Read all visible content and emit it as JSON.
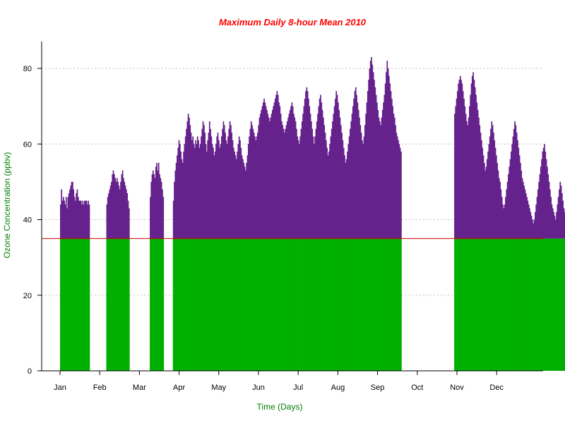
{
  "chart_data": {
    "type": "bar",
    "title": "Maximum Daily 8-hour Mean  2010",
    "xlabel": "Time (Days)",
    "ylabel": "Ozone Concentration (ppbv)",
    "x_ticks": [
      "Jan",
      "Feb",
      "Mar",
      "Apr",
      "May",
      "Jun",
      "Jul",
      "Aug",
      "Sep",
      "Oct",
      "Nov",
      "Dec"
    ],
    "y_ticks": [
      0,
      20,
      40,
      60,
      80
    ],
    "ylim": [
      0,
      87
    ],
    "xlim_days": [
      -9,
      1255
    ],
    "grid": "horizontal dotted",
    "threshold": 35,
    "colors": {
      "title": "#ff0000",
      "xlabel": "#008000",
      "ylabel": "#008000",
      "below_threshold": "#00b000",
      "above_threshold": "#66228c",
      "threshold_line": "#cc0000",
      "grid": "#c0c0c0"
    },
    "series": [
      {
        "start_day": 0,
        "values": [
          44,
          48,
          45,
          46,
          45,
          44,
          46,
          43,
          46,
          47,
          48,
          49,
          50,
          50,
          48,
          46,
          45,
          47,
          48,
          46,
          45,
          45,
          45,
          44,
          45,
          44,
          45,
          45,
          45,
          44,
          45,
          44
        ]
      },
      {
        "start_day": 50,
        "values": [
          44,
          46,
          47,
          48,
          49,
          50,
          52,
          53,
          52,
          51,
          50,
          51,
          50,
          49,
          48,
          50,
          52,
          53,
          51,
          50,
          49,
          48,
          47,
          45,
          43
        ]
      },
      {
        "start_day": 97,
        "values": [
          46,
          50,
          52,
          53,
          52,
          51,
          54,
          55,
          53,
          55,
          52,
          51,
          50,
          48,
          46
        ]
      },
      {
        "start_day": 122,
        "values": [
          45,
          50,
          53,
          55,
          57,
          59,
          61,
          60,
          58,
          56,
          55,
          58,
          60,
          62,
          64,
          66,
          68,
          67,
          65,
          63,
          61,
          62,
          60,
          59,
          61,
          60,
          62,
          61,
          59,
          60,
          62,
          64,
          66,
          65,
          63,
          60,
          58,
          61,
          63,
          66,
          64,
          62,
          60,
          59,
          57,
          58,
          60,
          62,
          63,
          61,
          59,
          60,
          62,
          64,
          66,
          65,
          63,
          61,
          60,
          62,
          64,
          66,
          65,
          63,
          61,
          59,
          58,
          57,
          56,
          58,
          60,
          62,
          61,
          59,
          57,
          56,
          55,
          54,
          53,
          55,
          57,
          60,
          62,
          64,
          66,
          65,
          64,
          63,
          62,
          61,
          62,
          63,
          65,
          67,
          68,
          69,
          70,
          71,
          72,
          71,
          70,
          69,
          68,
          67,
          66,
          67,
          68,
          69,
          70,
          71,
          72,
          73,
          74,
          73,
          71,
          70,
          68,
          66,
          65,
          64,
          63,
          64,
          65,
          66,
          67,
          68,
          69,
          70,
          71,
          70,
          68,
          67,
          66,
          64,
          62,
          61,
          60,
          62,
          64,
          66,
          68,
          70,
          72,
          74,
          75,
          74,
          72,
          70,
          68,
          66,
          64,
          62,
          60,
          62,
          64,
          66,
          68,
          70,
          72,
          73,
          71,
          69,
          67,
          65,
          63,
          61,
          59,
          57,
          58,
          60,
          62,
          64,
          66,
          68,
          70,
          72,
          74,
          73,
          71,
          69,
          67,
          65,
          63,
          61,
          59,
          57,
          55,
          56,
          58,
          60,
          62,
          64,
          66,
          68,
          70,
          72,
          74,
          75,
          73,
          71,
          69,
          67,
          65,
          63,
          61,
          60,
          62,
          65,
          68,
          71,
          74,
          77,
          80,
          82,
          83,
          81,
          79,
          77,
          75,
          73,
          71,
          69,
          67,
          66,
          65,
          67,
          69,
          71,
          73,
          76,
          79,
          82,
          80,
          78,
          76,
          74,
          72,
          70,
          68,
          67,
          65,
          63,
          62,
          61,
          60,
          59,
          58
        ]
      },
      {
        "start_day": 426,
        "values": [
          68,
          70,
          72,
          74,
          76,
          77,
          78,
          77,
          76,
          74,
          72,
          70,
          68,
          66,
          65,
          67,
          70,
          73,
          76,
          78,
          79,
          77,
          75,
          73,
          71,
          69,
          67,
          65,
          63,
          61,
          59,
          57,
          55,
          53,
          54,
          56,
          58,
          60,
          62,
          64,
          66,
          65,
          63,
          61,
          59,
          57,
          55,
          53,
          51,
          50,
          48,
          46,
          44,
          43,
          44,
          46,
          48,
          50,
          52,
          54,
          56,
          58,
          60,
          62,
          64,
          66,
          65,
          63,
          61,
          59,
          57,
          55,
          53,
          51,
          50,
          49,
          48,
          47,
          46,
          45,
          44,
          43,
          42,
          41,
          40,
          39,
          40,
          42,
          44,
          46,
          48,
          50,
          52,
          54,
          56,
          58,
          59,
          60,
          58,
          56,
          54,
          52,
          50,
          48,
          46,
          44,
          43,
          42,
          41,
          40,
          42,
          44,
          46,
          48,
          50,
          49,
          47,
          45,
          43,
          42,
          41,
          40,
          39,
          38,
          37,
          36,
          38,
          40,
          42,
          44,
          46,
          48,
          49,
          48,
          46,
          45,
          44,
          43,
          42,
          41,
          40,
          39,
          38
        ]
      },
      {
        "start_day": 569,
        "values": [
          40,
          42,
          44,
          45,
          46,
          45,
          44,
          45,
          46,
          45,
          44,
          43,
          42,
          41,
          40,
          39,
          40,
          42,
          44,
          46,
          47,
          45
        ]
      }
    ]
  }
}
